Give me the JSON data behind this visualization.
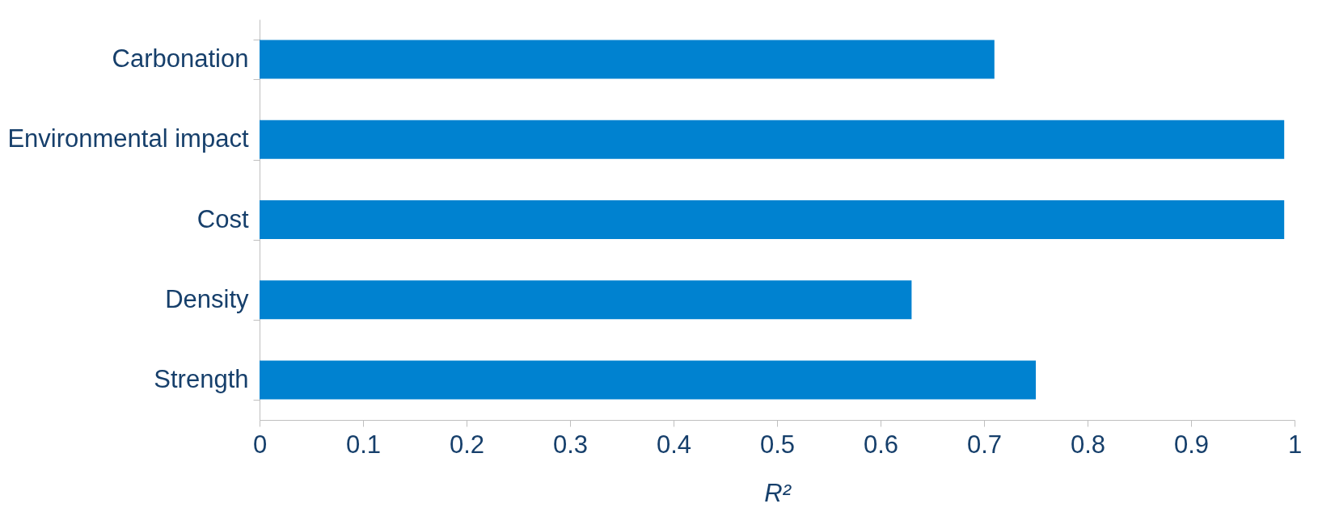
{
  "chart_data": {
    "type": "bar",
    "orientation": "horizontal",
    "xlabel": "R²",
    "categories": [
      "Carbonation",
      "Environmental impact",
      "Cost",
      "Density",
      "Strength"
    ],
    "values": [
      0.71,
      0.99,
      0.99,
      0.63,
      0.75
    ],
    "color": "#0082d0",
    "xlim": [
      0,
      1
    ],
    "xticks": [
      0,
      0.1,
      0.2,
      0.3,
      0.4,
      0.5,
      0.6,
      0.7,
      0.8,
      0.9,
      1
    ],
    "grid": false
  }
}
